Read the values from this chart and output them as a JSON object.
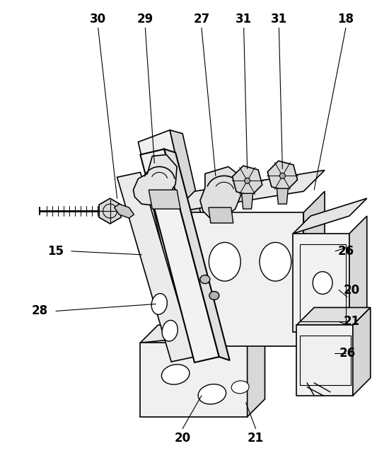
{
  "background_color": "#ffffff",
  "line_color": "#000000",
  "line_width": 1.0,
  "figure_width": 5.5,
  "figure_height": 6.47,
  "dpi": 100,
  "fill_light": "#f2f2f2",
  "fill_mid": "#e0e0e0",
  "fill_dark": "#cccccc",
  "fill_darker": "#b8b8b8"
}
